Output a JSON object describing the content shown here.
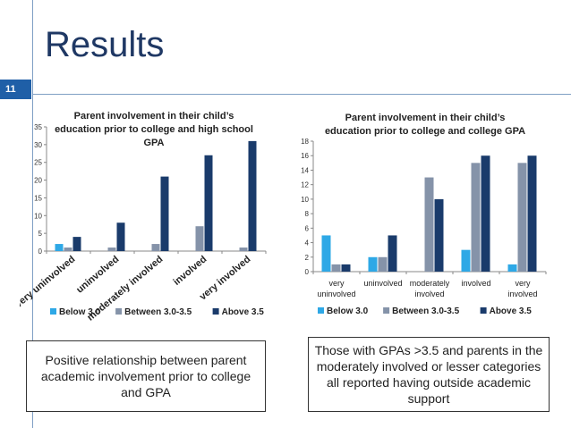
{
  "slide": {
    "title": "Results",
    "number": "11"
  },
  "colors": {
    "below": "#2ea8e6",
    "between": "#8593a9",
    "above": "#1a3b6b",
    "accent": "#1f5fa7"
  },
  "chart_data": [
    {
      "type": "bar",
      "title_lines": [
        "Parent involvement in their child’s",
        "education prior to college and high school",
        "GPA"
      ],
      "categories": [
        "very uninvolved",
        "uninvolved",
        "moderately involved",
        "involved",
        "very involved"
      ],
      "series": [
        {
          "name": "Below 3.0",
          "values": [
            2,
            0,
            0,
            0,
            0
          ]
        },
        {
          "name": "Between 3.0-3.5",
          "values": [
            1,
            1,
            2,
            7,
            1
          ]
        },
        {
          "name": "Above 3.5",
          "values": [
            4,
            8,
            21,
            27,
            31
          ]
        }
      ],
      "ylim": [
        0,
        35
      ],
      "yticks": [
        "0",
        "5",
        "10",
        "15",
        "20",
        "25",
        "30",
        "35"
      ],
      "legend": "bottom"
    },
    {
      "type": "bar",
      "title_lines": [
        "Parent involvement in their child’s",
        "education prior to college and college GPA"
      ],
      "categories": [
        "very uninvolved",
        "uninvolved",
        "moderately involved",
        "involved",
        "very involved"
      ],
      "category_label_lines": [
        [
          "very",
          "uninvolved"
        ],
        [
          "uninvolved"
        ],
        [
          "moderately",
          "involved"
        ],
        [
          "involved"
        ],
        [
          "very",
          "involved"
        ]
      ],
      "series": [
        {
          "name": "Below 3.0",
          "values": [
            5,
            2,
            0,
            3,
            1
          ]
        },
        {
          "name": "Between 3.0-3.5",
          "values": [
            1,
            2,
            13,
            15,
            15
          ]
        },
        {
          "name": "Above 3.5",
          "values": [
            1,
            5,
            10,
            16,
            16
          ]
        }
      ],
      "ylim": [
        0,
        18
      ],
      "yticks": [
        "0",
        "2",
        "4",
        "6",
        "8",
        "10",
        "12",
        "14",
        "16",
        "18"
      ],
      "legend": "bottom"
    }
  ],
  "callouts": {
    "left": "Positive relationship between parent academic involvement prior to college and GPA",
    "right": "Those with GPAs >3.5 and parents in the moderately involved or lesser categories all reported having outside academic support"
  }
}
